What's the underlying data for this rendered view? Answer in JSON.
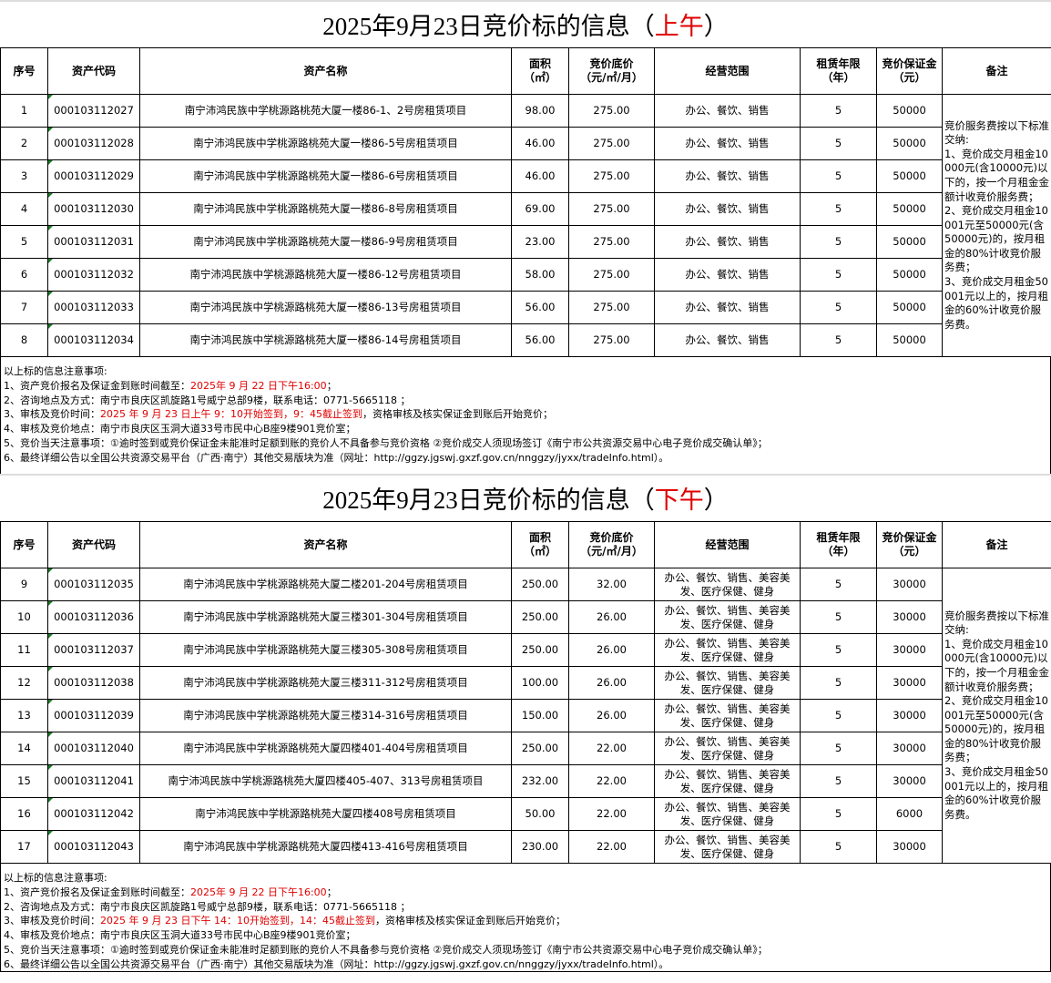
{
  "headers": [
    "序号",
    "资产代码",
    "资产名称",
    "面积\n（㎡）",
    "竞价底价\n（元/㎡/月）",
    "经营范围",
    "租赁年限\n（年）",
    "竞价保证金\n（元）",
    "备注"
  ],
  "colors": {
    "highlight_red": "#e00000",
    "text_indicator_green": "#1d7a2c"
  },
  "sections": [
    {
      "title_main": "2025年9月23日竞价标的信息（",
      "title_period": "上午",
      "title_close": "）",
      "remark": "竞价服务费按以下标准交纳:\n1、竞价成交月租金10000元(含10000元)以下的，按一个月租金金额计收竞价服务费；\n2、竞价成交月租金10001元至50000元(含50000元)的，按月租金的80%计收竞价服务费；\n3、竞价成交月租金50001元以上的，按月租金的60%计收竞价服务费。",
      "rows": [
        {
          "no": "1",
          "code": "000103112027",
          "name": "南宁沛鸿民族中学桃源路桃苑大厦一楼86-1、2号房租赁项目",
          "area": "98.00",
          "price": "275.00",
          "scope": "办公、餐饮、销售",
          "years": "5",
          "deposit": "50000"
        },
        {
          "no": "2",
          "code": "000103112028",
          "name": "南宁沛鸿民族中学桃源路桃苑大厦一楼86-5号房租赁项目",
          "area": "46.00",
          "price": "275.00",
          "scope": "办公、餐饮、销售",
          "years": "5",
          "deposit": "50000"
        },
        {
          "no": "3",
          "code": "000103112029",
          "name": "南宁沛鸿民族中学桃源路桃苑大厦一楼86-6号房租赁项目",
          "area": "46.00",
          "price": "275.00",
          "scope": "办公、餐饮、销售",
          "years": "5",
          "deposit": "50000"
        },
        {
          "no": "4",
          "code": "000103112030",
          "name": "南宁沛鸿民族中学桃源路桃苑大厦一楼86-8号房租赁项目",
          "area": "69.00",
          "price": "275.00",
          "scope": "办公、餐饮、销售",
          "years": "5",
          "deposit": "50000"
        },
        {
          "no": "5",
          "code": "000103112031",
          "name": "南宁沛鸿民族中学桃源路桃苑大厦一楼86-9号房租赁项目",
          "area": "23.00",
          "price": "275.00",
          "scope": "办公、餐饮、销售",
          "years": "5",
          "deposit": "50000"
        },
        {
          "no": "6",
          "code": "000103112032",
          "name": "南宁沛鸿民族中学桃源路桃苑大厦一楼86-12号房租赁项目",
          "area": "58.00",
          "price": "275.00",
          "scope": "办公、餐饮、销售",
          "years": "5",
          "deposit": "50000"
        },
        {
          "no": "7",
          "code": "000103112033",
          "name": "南宁沛鸿民族中学桃源路桃苑大厦一楼86-13号房租赁项目",
          "area": "56.00",
          "price": "275.00",
          "scope": "办公、餐饮、销售",
          "years": "5",
          "deposit": "50000"
        },
        {
          "no": "8",
          "code": "000103112034",
          "name": "南宁沛鸿民族中学桃源路桃苑大厦一楼86-14号房租赁项目",
          "area": "56.00",
          "price": "275.00",
          "scope": "办公、餐饮、销售",
          "years": "5",
          "deposit": "50000"
        }
      ],
      "notes": [
        [
          {
            "t": "以上标的信息注意事项:",
            "red": false
          }
        ],
        [
          {
            "t": "1、资产竞价报名及保证金到账时间截至：",
            "red": false
          },
          {
            "t": "2025年 9 月 22 日下午16:00",
            "red": true
          },
          {
            "t": "；",
            "red": false
          }
        ],
        [
          {
            "t": "2、咨询地点及方式：南宁市良庆区凯旋路1号威宁总部9楼，联系电话：0771-5665118 ；",
            "red": false
          }
        ],
        [
          {
            "t": "3、审核及竞价时间：",
            "red": false
          },
          {
            "t": "2025 年 9 月 23 日上午 9：10开始签到，9：45截止签到",
            "red": true
          },
          {
            "t": "，资格审核及核实保证金到账后开始竞价；",
            "red": false
          }
        ],
        [
          {
            "t": "4、审核及竞价地点：南宁市良庆区玉洞大道33号市民中心B座9楼901竞价室；",
            "red": false
          }
        ],
        [
          {
            "t": "5、竞价当天注意事项：①逾时签到或竞价保证金未能准时足额到账的竞价人不具备参与竞价资格 ②竞价成交人须现场签订《南宁市公共资源交易中心电子竞价成交确认单》；",
            "red": false
          }
        ],
        [
          {
            "t": "6、最终详细公告以全国公共资源交易平台（广西·南宁）其他交易版块为准（网址：http://ggzy.jgswj.gxzf.gov.cn/nnggzy/jyxx/tradeInfo.html）。",
            "red": false
          }
        ]
      ]
    },
    {
      "title_main": "2025年9月23日竞价标的信息（",
      "title_period": "下午",
      "title_close": "）",
      "remark": "竞价服务费按以下标准交纳:\n1、竞价成交月租金10000元(含10000元)以下的，按一个月租金金额计收竞价服务费；\n2、竞价成交月租金10001元至50000元(含50000元)的，按月租金的80%计收竞价服务费；\n3、竞价成交月租金50001元以上的，按月租金的60%计收竞价服务费。",
      "rows": [
        {
          "no": "9",
          "code": "000103112035",
          "name": "南宁沛鸿民族中学桃源路桃苑大厦二楼201-204号房租赁项目",
          "area": "250.00",
          "price": "32.00",
          "scope": "办公、餐饮、销售、美容美发、医疗保健、健身",
          "years": "5",
          "deposit": "30000"
        },
        {
          "no": "10",
          "code": "000103112036",
          "name": "南宁沛鸿民族中学桃源路桃苑大厦三楼301-304号房租赁项目",
          "area": "250.00",
          "price": "26.00",
          "scope": "办公、餐饮、销售、美容美发、医疗保健、健身",
          "years": "5",
          "deposit": "30000"
        },
        {
          "no": "11",
          "code": "000103112037",
          "name": "南宁沛鸿民族中学桃源路桃苑大厦三楼305-308号房租赁项目",
          "area": "250.00",
          "price": "26.00",
          "scope": "办公、餐饮、销售、美容美发、医疗保健、健身",
          "years": "5",
          "deposit": "30000"
        },
        {
          "no": "12",
          "code": "000103112038",
          "name": "南宁沛鸿民族中学桃源路桃苑大厦三楼311-312号房租赁项目",
          "area": "100.00",
          "price": "26.00",
          "scope": "办公、餐饮、销售、美容美发、医疗保健、健身",
          "years": "5",
          "deposit": "30000"
        },
        {
          "no": "13",
          "code": "000103112039",
          "name": "南宁沛鸿民族中学桃源路桃苑大厦三楼314-316号房租赁项目",
          "area": "150.00",
          "price": "26.00",
          "scope": "办公、餐饮、销售、美容美发、医疗保健、健身",
          "years": "5",
          "deposit": "30000"
        },
        {
          "no": "14",
          "code": "000103112040",
          "name": "南宁沛鸿民族中学桃源路桃苑大厦四楼401-404号房租赁项目",
          "area": "250.00",
          "price": "22.00",
          "scope": "办公、餐饮、销售、美容美发、医疗保健、健身",
          "years": "5",
          "deposit": "30000"
        },
        {
          "no": "15",
          "code": "000103112041",
          "name": "南宁沛鸿民族中学桃源路桃苑大厦四楼405-407、313号房租赁项目",
          "area": "232.00",
          "price": "22.00",
          "scope": "办公、餐饮、销售、美容美发、医疗保健、健身",
          "years": "5",
          "deposit": "30000"
        },
        {
          "no": "16",
          "code": "000103112042",
          "name": "南宁沛鸿民族中学桃源路桃苑大厦四楼408号房租赁项目",
          "area": "50.00",
          "price": "22.00",
          "scope": "办公、餐饮、销售、美容美发、医疗保健、健身",
          "years": "5",
          "deposit": "6000"
        },
        {
          "no": "17",
          "code": "000103112043",
          "name": "南宁沛鸿民族中学桃源路桃苑大厦四楼413-416号房租赁项目",
          "area": "230.00",
          "price": "22.00",
          "scope": "办公、餐饮、销售、美容美发、医疗保健、健身",
          "years": "5",
          "deposit": "30000"
        }
      ],
      "notes": [
        [
          {
            "t": "以上标的信息注意事项:",
            "red": false
          }
        ],
        [
          {
            "t": "1、资产竞价报名及保证金到账时间截至：",
            "red": false
          },
          {
            "t": "2025年 9 月 22 日下午16:00",
            "red": true
          },
          {
            "t": "；",
            "red": false
          }
        ],
        [
          {
            "t": "2、咨询地点及方式：南宁市良庆区凯旋路1号威宁总部9楼，联系电话：0771-5665118 ；",
            "red": false
          }
        ],
        [
          {
            "t": "3、审核及竞价时间：",
            "red": false
          },
          {
            "t": "2025 年 9 月 23 日下午 14：10开始签到，14：45截止签到",
            "red": true
          },
          {
            "t": "，资格审核及核实保证金到账后开始竞价；",
            "red": false
          }
        ],
        [
          {
            "t": "4、审核及竞价地点：南宁市良庆区玉洞大道33号市民中心B座9楼901竞价室；",
            "red": false
          }
        ],
        [
          {
            "t": "5、竞价当天注意事项：①逾时签到或竞价保证金未能准时足额到账的竞价人不具备参与竞价资格 ②竞价成交人须现场签订《南宁市公共资源交易中心电子竞价成交确认单》；",
            "red": false
          }
        ],
        [
          {
            "t": "6、最终详细公告以全国公共资源交易平台（广西·南宁）其他交易版块为准（网址：http://ggzy.jgswj.gxzf.gov.cn/nnggzy/jyxx/tradeInfo.html）。",
            "red": false
          }
        ]
      ]
    }
  ]
}
